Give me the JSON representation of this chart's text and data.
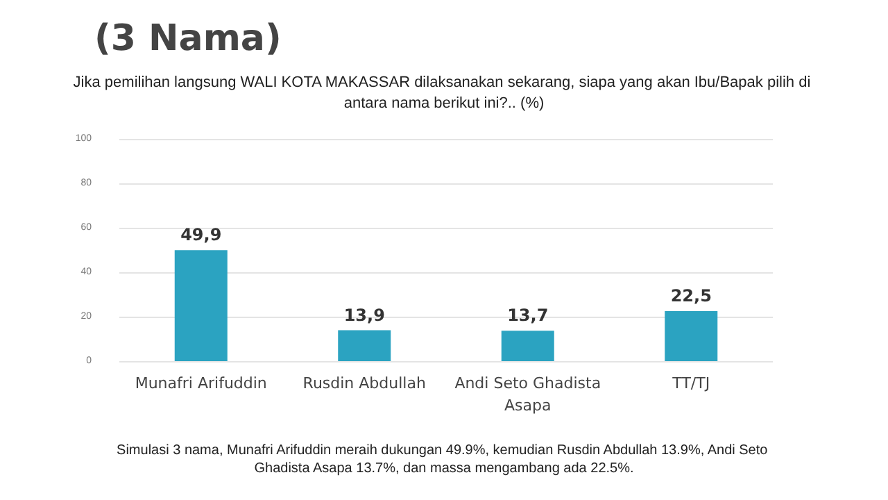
{
  "chart_data": {
    "type": "bar",
    "title": "(3 Nama)",
    "subtitle": "Jika pemilihan langsung WALI KOTA MAKASSAR dilaksanakan sekarang, siapa yang akan Ibu/Bapak pilih di antara nama berikut ini?.. (%)",
    "categories": [
      "Munafri Arifuddin",
      "Rusdin Abdullah",
      "Andi Seto Ghadista\nAsapa",
      "TT/TJ"
    ],
    "values": [
      49.9,
      13.9,
      13.7,
      22.5
    ],
    "value_labels": [
      "49,9",
      "13,9",
      "13,7",
      "22,5"
    ],
    "color": "#2ba3c1",
    "ylim": [
      0,
      100
    ],
    "yticks": [
      0,
      20,
      40,
      60,
      80,
      100
    ],
    "grid": "y",
    "annotations": [
      "Simulasi 3 nama, Munafri Arifuddin meraih dukungan 49.9%, kemudian Rusdin Abdullah 13.9%, Andi Seto Ghadista Asapa 13.7%, dan massa mengambang ada 22.5%."
    ]
  }
}
